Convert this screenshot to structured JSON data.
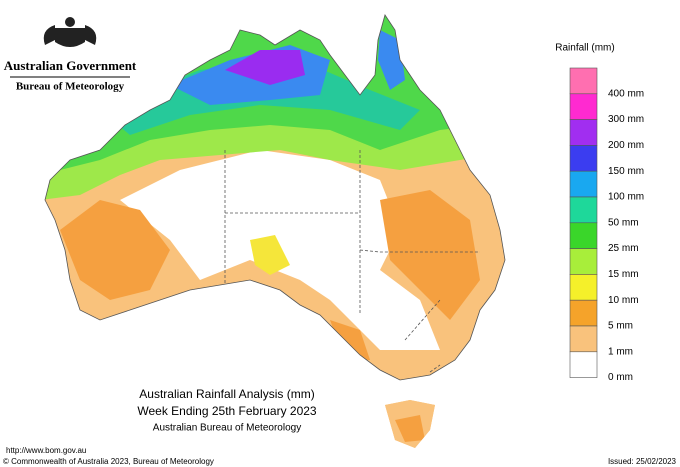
{
  "header": {
    "government": "Australian Government",
    "bureau": "Bureau of Meteorology"
  },
  "legend": {
    "title": "Rainfall (mm)",
    "labels": [
      "400 mm",
      "300 mm",
      "200 mm",
      "150 mm",
      "100 mm",
      "50 mm",
      "25 mm",
      "15 mm",
      "10 mm",
      "5 mm",
      "1 mm",
      "0 mm"
    ]
  },
  "map": {
    "title": "Australian Rainfall Analysis (mm)",
    "subtitle": "Week Ending 25th February 2023",
    "source": "Australian Bureau of Meteorology"
  },
  "footer": {
    "url": "http://www.bom.gov.au",
    "copyright": "© Commonwealth of Australia 2023, Bureau of Meteorology",
    "issued": "Issued: 25/02/2023"
  }
}
